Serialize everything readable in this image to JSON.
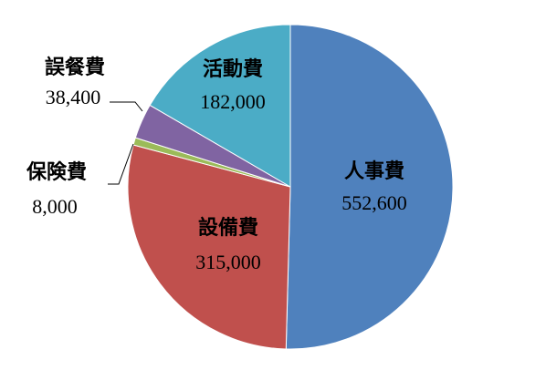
{
  "chart_data": {
    "type": "pie",
    "categories": [
      "人事費",
      "設備費",
      "保険費",
      "誤餐費",
      "活動費"
    ],
    "values": [
      552600,
      315000,
      8000,
      38400,
      182000
    ],
    "value_labels": [
      "552,600",
      "315,000",
      "8,000",
      "38,400",
      "182,000"
    ],
    "colors": [
      "#4f81bd",
      "#c0504d",
      "#9bbb59",
      "#8064a2",
      "#4bacc6"
    ]
  }
}
